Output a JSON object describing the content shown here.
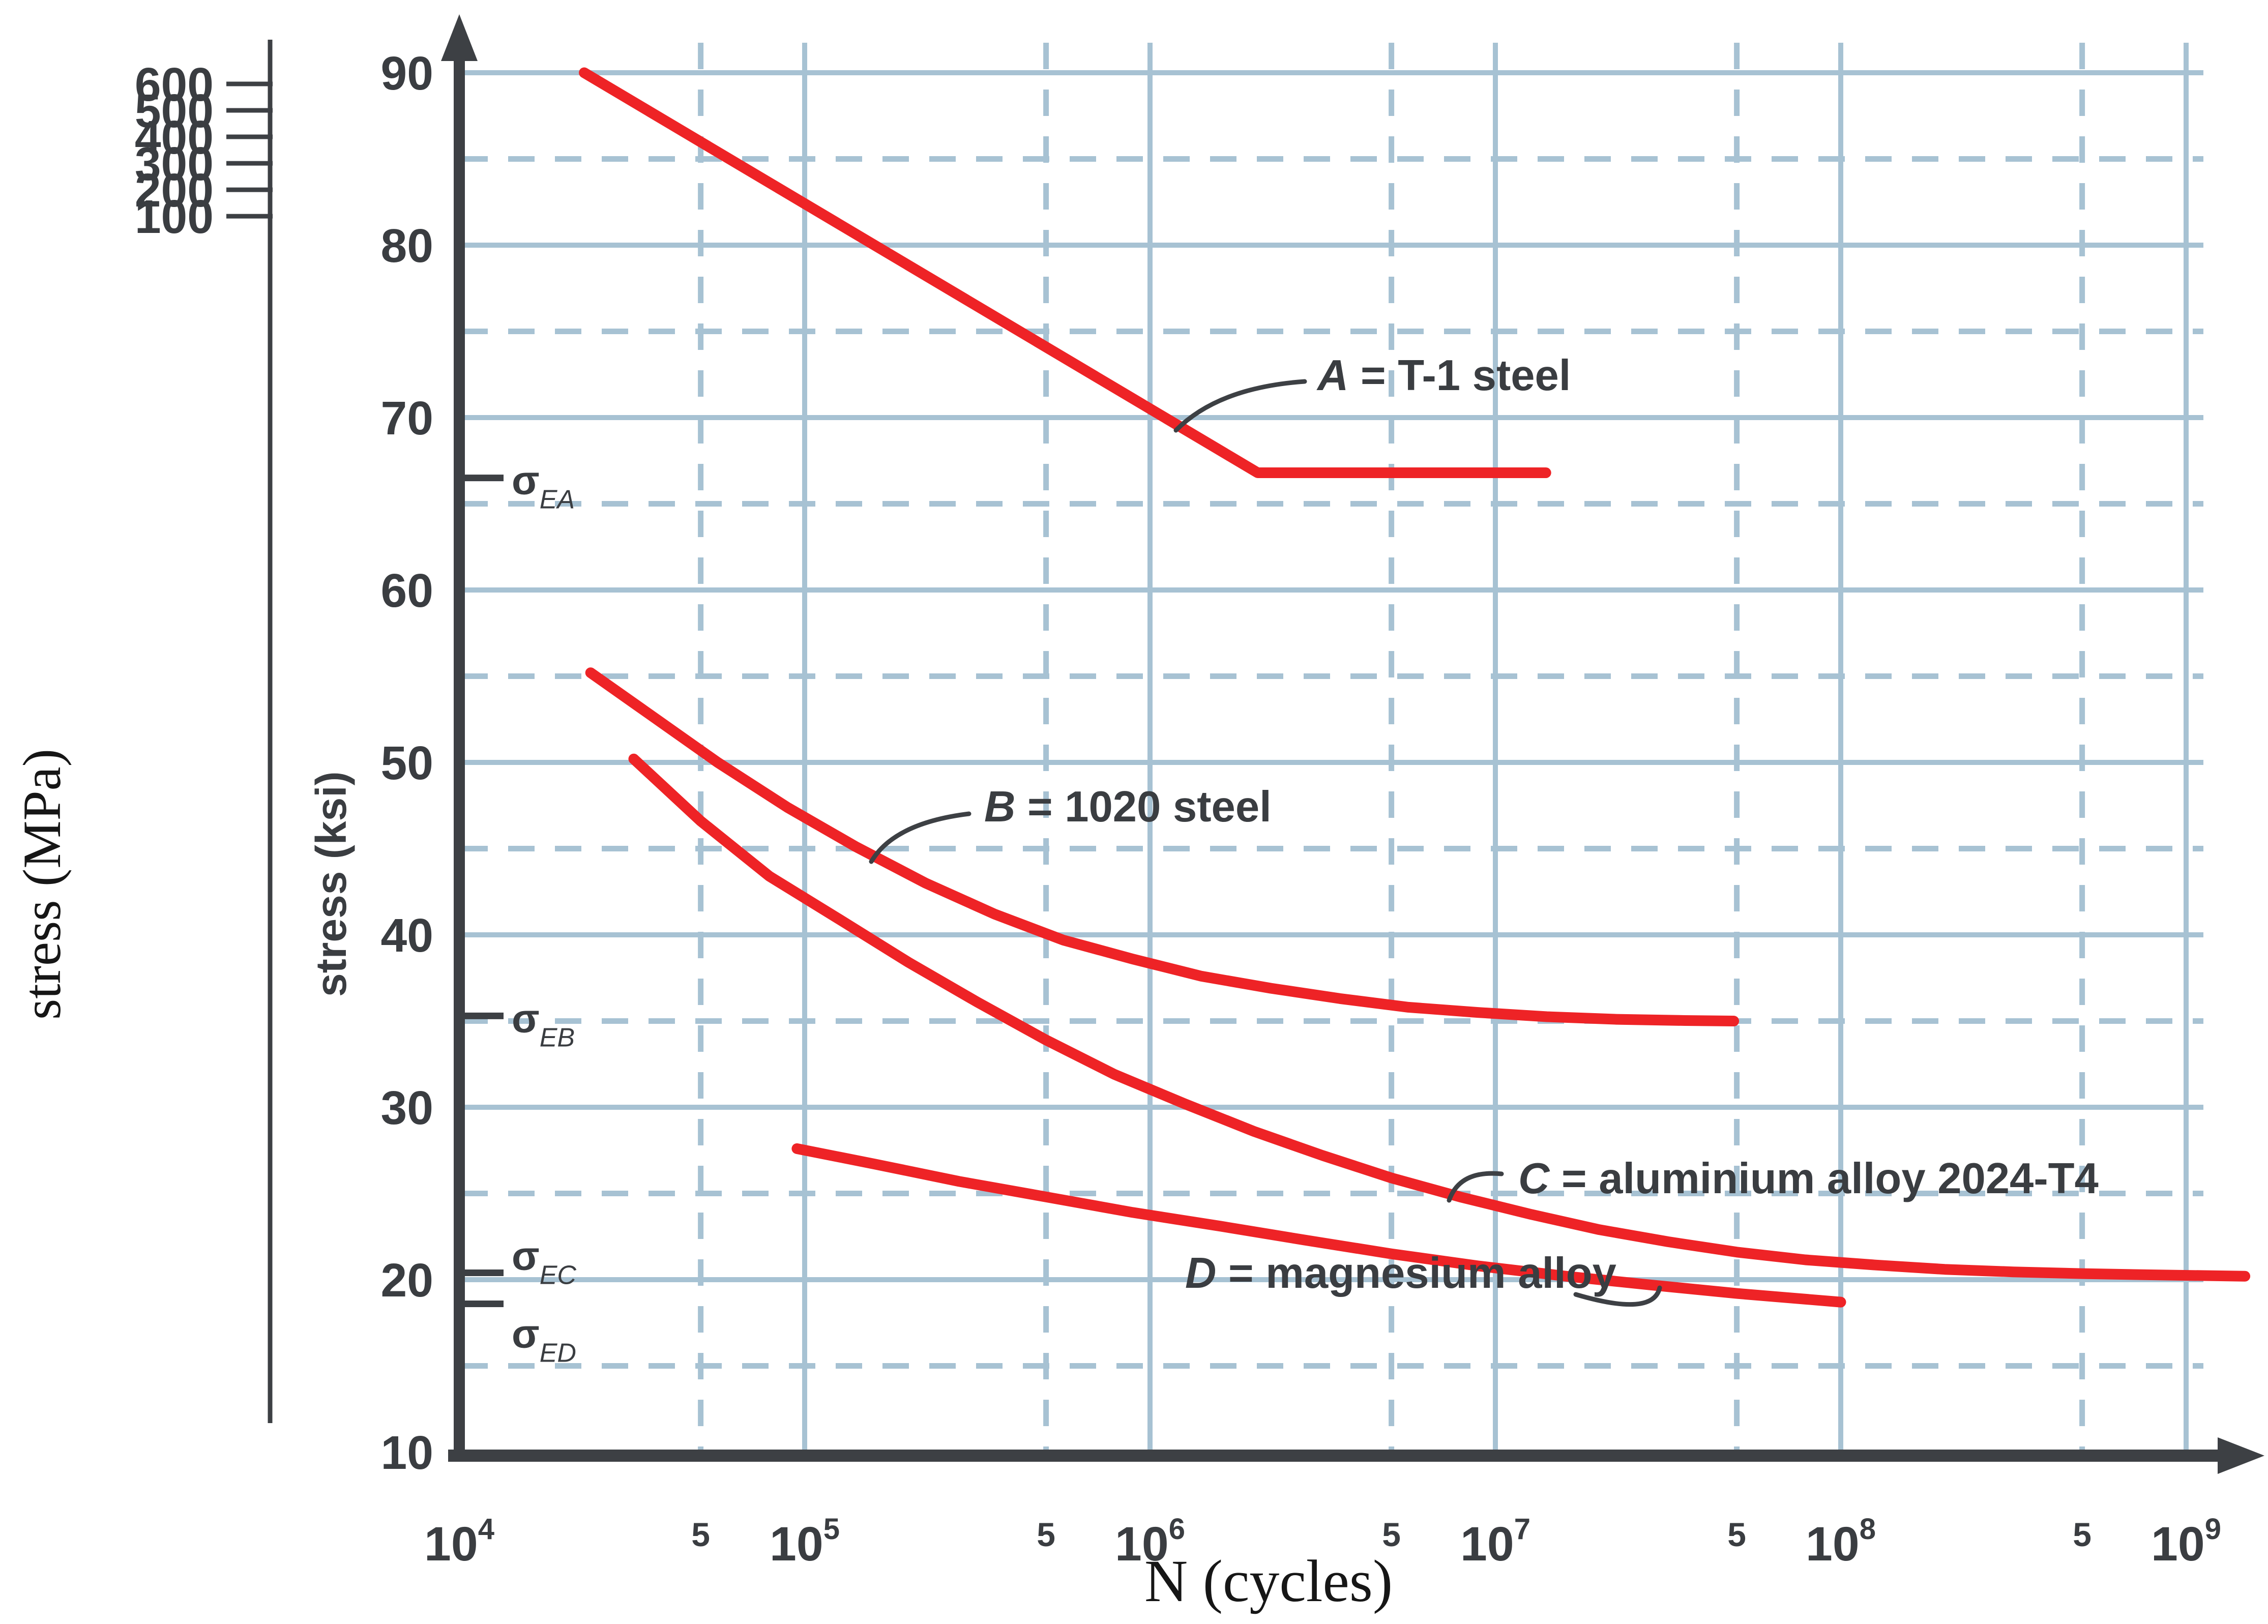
{
  "figure": {
    "background": "#ffffff",
    "curve_color": "#ee2326",
    "grid_color": "#a7c2d3",
    "axis_color": "#3d4044",
    "tick_label_color": "#3a3d41",
    "serif_label_color": "#161616"
  },
  "chart_data": {
    "type": "line",
    "title": "",
    "xlabel": "N (cycles)",
    "ylabel_outer": "stress (MPa)",
    "ylabel_inner": "stress (ksi)",
    "x_axis": {
      "scale": "log",
      "min": 10000,
      "max": 1000000000,
      "major_tick_exponents": [
        4,
        5,
        6,
        7,
        8,
        9
      ],
      "major_tick_base": "10",
      "minor_tick_label": "5",
      "minor_tick_decades": [
        4,
        5,
        6,
        7,
        8
      ]
    },
    "y_axis_ksi": {
      "min": 10,
      "max": 90,
      "tick_labels": [
        90,
        80,
        70,
        60,
        50,
        40,
        30,
        20,
        10
      ],
      "solid_gridlines_ksi": [
        20,
        30,
        40,
        50,
        60,
        70,
        80,
        90
      ],
      "dashed_gridlines_ksi": [
        15,
        25,
        35,
        45,
        55,
        65,
        75,
        85
      ]
    },
    "y_axis_mpa": {
      "tick_labels": [
        600,
        500,
        400,
        300,
        200,
        100
      ]
    },
    "endurance_limits": [
      {
        "name": "sigma-EA",
        "symbol": "σ",
        "sub": "EA",
        "ksi": 66.5,
        "label_side": "center"
      },
      {
        "name": "sigma-EB",
        "symbol": "σ",
        "sub": "EB",
        "ksi": 35.3,
        "label_side": "center"
      },
      {
        "name": "sigma-EC",
        "symbol": "σ",
        "sub": "EC",
        "ksi": 20.4,
        "label_side": "above"
      },
      {
        "name": "sigma-ED",
        "symbol": "σ",
        "sub": "ED",
        "ksi": 18.6,
        "label_side": "below"
      }
    ],
    "series": [
      {
        "id": "A",
        "letter": "A",
        "label_rest": " = T-1 steel",
        "endurance_limit_ksi": 66.8,
        "points_N_ksi": [
          [
            23000,
            90
          ],
          [
            2050000,
            66.8
          ],
          [
            14000000,
            66.8
          ]
        ]
      },
      {
        "id": "B",
        "letter": "B",
        "label_rest": " = 1020 steel",
        "endurance_limit_ksi": 35.0,
        "points_N_ksi": [
          [
            24000,
            55.2
          ],
          [
            35500,
            52.8
          ],
          [
            56000,
            50.0
          ],
          [
            89000,
            47.4
          ],
          [
            141000,
            45.1
          ],
          [
            224000,
            43.0
          ],
          [
            355000,
            41.2
          ],
          [
            560000,
            39.7
          ],
          [
            890000,
            38.6
          ],
          [
            1410000,
            37.6
          ],
          [
            2240000,
            36.9
          ],
          [
            3550000,
            36.3
          ],
          [
            5600000,
            35.8
          ],
          [
            8900000,
            35.5
          ],
          [
            14100000,
            35.25
          ],
          [
            22400000,
            35.1
          ],
          [
            35500000,
            35.03
          ],
          [
            49000000,
            35.0
          ]
        ]
      },
      {
        "id": "C",
        "letter": "C",
        "label_rest": " = aluminium alloy 2024-T4",
        "endurance_limit_ksi": 20.3,
        "points_N_ksi": [
          [
            32000,
            50.2
          ],
          [
            50000,
            46.6
          ],
          [
            79000,
            43.4
          ],
          [
            126000,
            40.9
          ],
          [
            200000,
            38.4
          ],
          [
            316000,
            36.1
          ],
          [
            500000,
            33.9
          ],
          [
            790000,
            31.9
          ],
          [
            1260000,
            30.2
          ],
          [
            2000000,
            28.6
          ],
          [
            3160000,
            27.2
          ],
          [
            5000000,
            25.9
          ],
          [
            7900000,
            24.8
          ],
          [
            12600000,
            23.8
          ],
          [
            20000000,
            22.9
          ],
          [
            31600000,
            22.2
          ],
          [
            50000000,
            21.6
          ],
          [
            79000000,
            21.15
          ],
          [
            126000000,
            20.85
          ],
          [
            200000000,
            20.6
          ],
          [
            316000000,
            20.45
          ],
          [
            500000000,
            20.35
          ],
          [
            790000000,
            20.28
          ],
          [
            1260000000,
            20.22
          ],
          [
            1480000000,
            20.2
          ]
        ]
      },
      {
        "id": "D",
        "letter": "D",
        "label_rest": " = magnesium alloy",
        "endurance_limit_ksi": 18.7,
        "points_N_ksi": [
          [
            95000,
            27.6
          ],
          [
            160000,
            26.7
          ],
          [
            280000,
            25.7
          ],
          [
            500000,
            24.8
          ],
          [
            890000,
            23.9
          ],
          [
            1600000,
            23.1
          ],
          [
            2800000,
            22.3
          ],
          [
            5000000,
            21.5
          ],
          [
            8900000,
            20.8
          ],
          [
            16000000,
            20.2
          ],
          [
            28000000,
            19.7
          ],
          [
            50000000,
            19.2
          ],
          [
            100000000,
            18.7
          ]
        ]
      }
    ]
  }
}
